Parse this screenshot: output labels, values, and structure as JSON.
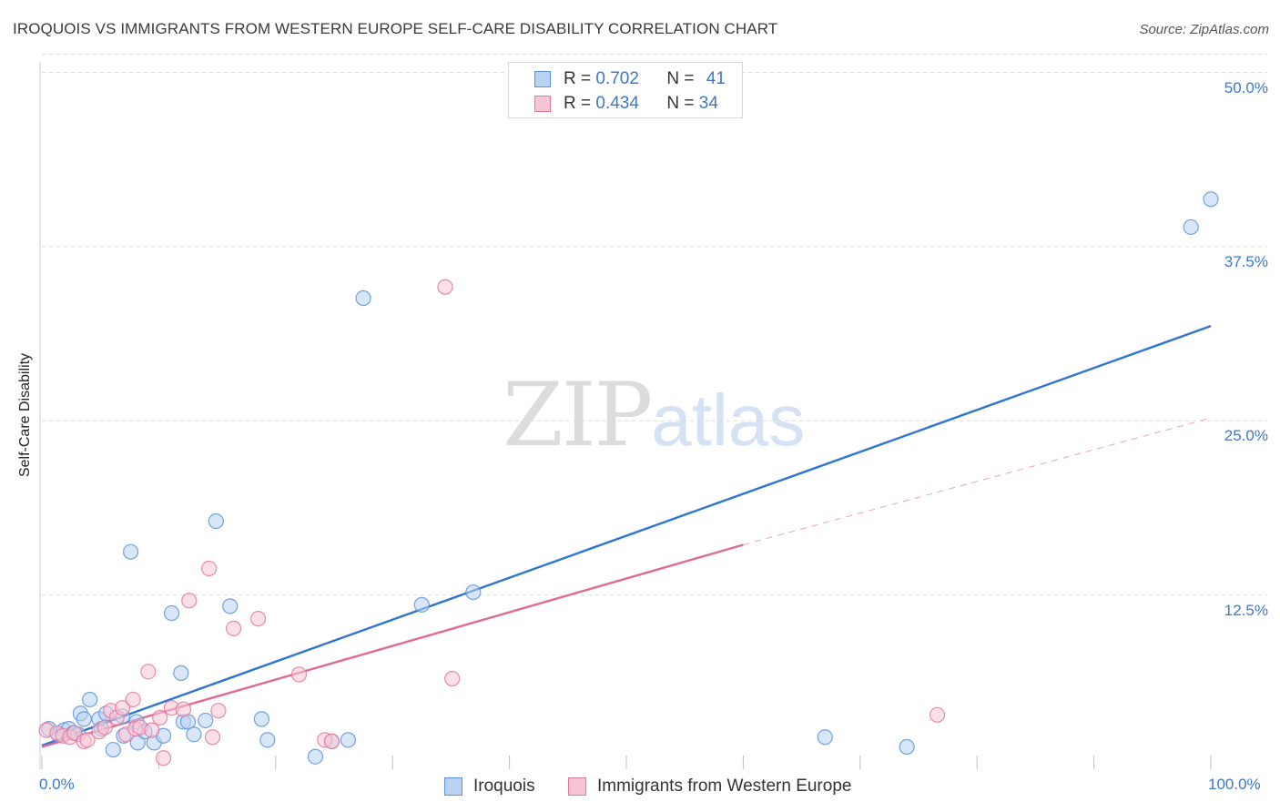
{
  "title": "IROQUOIS VS IMMIGRANTS FROM WESTERN EUROPE SELF-CARE DISABILITY CORRELATION CHART",
  "source": "Source: ZipAtlas.com",
  "watermark": {
    "zip": "ZIP",
    "atlas": "atlas"
  },
  "legend": {
    "rows": [
      {
        "r_label": "R = ",
        "r_value": "0.702",
        "n_label": "N = ",
        "n_value": "41"
      },
      {
        "r_label": "R = ",
        "r_value": "0.434",
        "n_label": "N = ",
        "n_value": "34"
      }
    ]
  },
  "chart_data": {
    "type": "scatter",
    "title": "IROQUOIS VS IMMIGRANTS FROM WESTERN EUROPE SELF-CARE DISABILITY CORRELATION CHART",
    "xlabel": "",
    "ylabel": "Self-Care Disability",
    "xlim": [
      0,
      100
    ],
    "ylim": [
      0,
      52
    ],
    "x_tick_labels": [
      "0.0%",
      "100.0%"
    ],
    "y_ticks": [
      12.5,
      25.0,
      37.5,
      50.0
    ],
    "y_tick_labels": [
      "12.5%",
      "25.0%",
      "37.5%",
      "50.0%"
    ],
    "grid": true,
    "legend_position": "top-center",
    "series": [
      {
        "name": "Iroquois",
        "color": "#5b93db",
        "fill": "#b9d2f3",
        "r": "0.702",
        "n": "41",
        "points": [
          [
            0.6,
            2.9
          ],
          [
            1.4,
            2.5
          ],
          [
            1.9,
            2.8
          ],
          [
            2.3,
            2.9
          ],
          [
            2.7,
            2.6
          ],
          [
            3.1,
            2.5
          ],
          [
            3.3,
            4.0
          ],
          [
            3.6,
            3.6
          ],
          [
            4.1,
            5.0
          ],
          [
            4.9,
            3.6
          ],
          [
            5.1,
            2.9
          ],
          [
            5.5,
            4.0
          ],
          [
            6.1,
            1.4
          ],
          [
            6.9,
            3.8
          ],
          [
            7.0,
            2.4
          ],
          [
            7.6,
            15.6
          ],
          [
            8.1,
            3.4
          ],
          [
            8.2,
            1.9
          ],
          [
            8.8,
            2.7
          ],
          [
            9.6,
            1.9
          ],
          [
            10.4,
            2.4
          ],
          [
            11.1,
            11.2
          ],
          [
            11.9,
            6.9
          ],
          [
            12.1,
            3.4
          ],
          [
            12.5,
            3.4
          ],
          [
            13.0,
            2.5
          ],
          [
            14.0,
            3.5
          ],
          [
            14.9,
            17.8
          ],
          [
            16.1,
            11.7
          ],
          [
            18.8,
            3.6
          ],
          [
            19.3,
            2.1
          ],
          [
            23.4,
            0.9
          ],
          [
            24.8,
            2.0
          ],
          [
            26.2,
            2.1
          ],
          [
            27.5,
            33.8
          ],
          [
            32.5,
            11.8
          ],
          [
            36.9,
            12.7
          ],
          [
            67.0,
            2.3
          ],
          [
            74.0,
            1.6
          ],
          [
            98.3,
            38.9
          ],
          [
            100.0,
            40.9
          ]
        ],
        "trend": {
          "x": [
            0,
            100
          ],
          "y": [
            1.7,
            31.8
          ]
        }
      },
      {
        "name": "Immigrants from Western Europe",
        "color": "#e3789c",
        "fill": "#f7c6d5",
        "r": "0.434",
        "n": "34",
        "points": [
          [
            0.4,
            2.8
          ],
          [
            1.3,
            2.6
          ],
          [
            1.8,
            2.4
          ],
          [
            2.4,
            2.3
          ],
          [
            2.8,
            2.6
          ],
          [
            3.6,
            2.0
          ],
          [
            3.9,
            2.1
          ],
          [
            4.9,
            2.7
          ],
          [
            5.4,
            3.0
          ],
          [
            5.9,
            4.2
          ],
          [
            6.4,
            3.7
          ],
          [
            6.9,
            4.4
          ],
          [
            7.2,
            2.5
          ],
          [
            7.8,
            5.0
          ],
          [
            8.0,
            2.9
          ],
          [
            8.4,
            3.0
          ],
          [
            9.1,
            7.0
          ],
          [
            9.4,
            2.8
          ],
          [
            10.1,
            3.7
          ],
          [
            10.4,
            0.8
          ],
          [
            11.1,
            4.4
          ],
          [
            12.1,
            4.3
          ],
          [
            12.6,
            12.1
          ],
          [
            14.3,
            14.4
          ],
          [
            14.6,
            2.3
          ],
          [
            15.1,
            4.2
          ],
          [
            16.4,
            10.1
          ],
          [
            18.5,
            10.8
          ],
          [
            22.0,
            6.8
          ],
          [
            24.2,
            2.1
          ],
          [
            24.8,
            2.0
          ],
          [
            34.5,
            34.6
          ],
          [
            35.1,
            6.5
          ],
          [
            76.6,
            3.9
          ]
        ],
        "trend": {
          "x": [
            0,
            60
          ],
          "y": [
            1.6,
            16.1
          ]
        },
        "trend_extension": {
          "x": [
            60,
            100
          ],
          "y": [
            16.1,
            25.2
          ]
        }
      }
    ]
  },
  "bottom_legend": {
    "items": [
      {
        "label": "Iroquois"
      },
      {
        "label": "Immigrants from Western Europe"
      }
    ]
  }
}
